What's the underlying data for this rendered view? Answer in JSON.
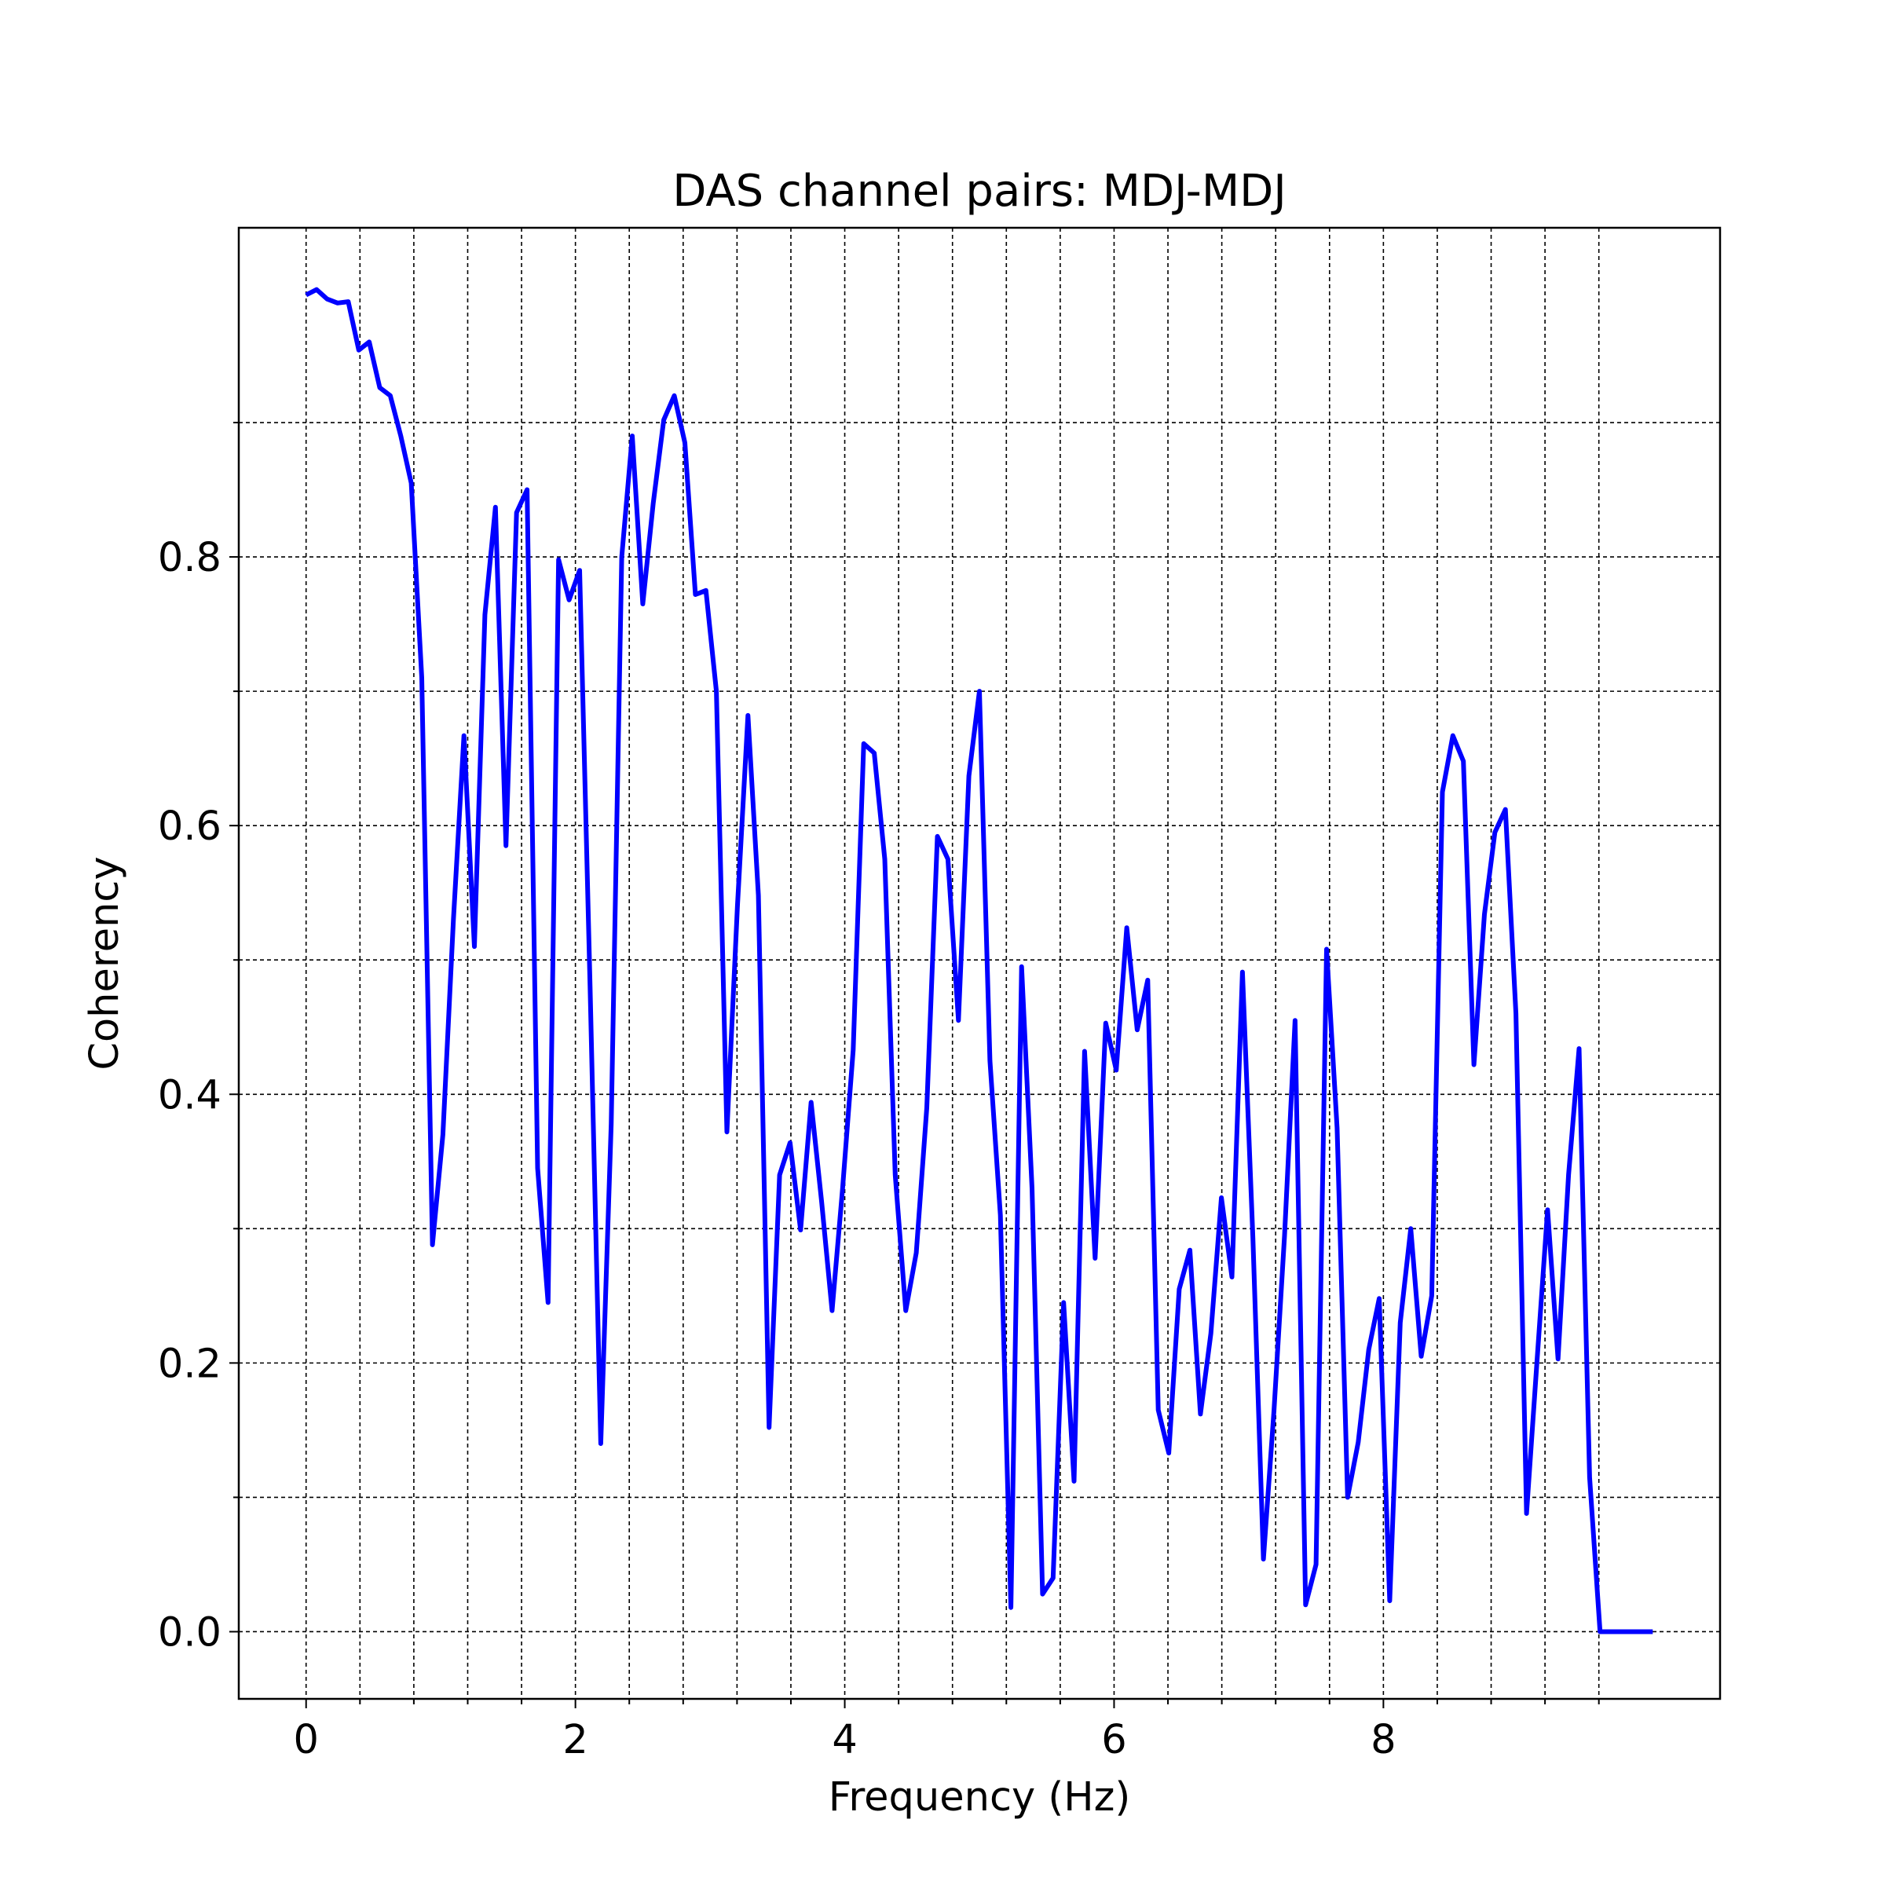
{
  "colors": {
    "line": "#0000ff",
    "background": "#ffffff",
    "axes": "#000000"
  },
  "chart_data": {
    "type": "line",
    "title": "DAS channel pairs: MDJ-MDJ",
    "xlabel": "Frequency (Hz)",
    "ylabel": "Coherency",
    "xlim": [
      -0.5,
      10.5
    ],
    "ylim": [
      -0.05,
      1.045
    ],
    "x_major_ticks": [
      0,
      2,
      4,
      6,
      8
    ],
    "x_tick_labels": [
      "0",
      "2",
      "4",
      "6",
      "8"
    ],
    "y_major_ticks": [
      0.0,
      0.2,
      0.4,
      0.6,
      0.8
    ],
    "y_tick_labels": [
      "0.0",
      "0.2",
      "0.4",
      "0.6",
      "0.8"
    ],
    "x_minor_ticks": [
      0.4,
      0.8,
      1.2,
      1.6,
      2.4,
      2.8,
      3.2,
      3.6,
      4.4,
      4.8,
      5.2,
      5.6,
      6.4,
      6.8,
      7.2,
      7.6,
      8.4,
      8.8,
      9.2,
      9.6
    ],
    "y_minor_ticks": [
      0.1,
      0.3,
      0.5,
      0.7,
      0.9
    ],
    "grid": true,
    "grid_style": "dashed, major and minor",
    "legend": "none",
    "series": [
      {
        "color": "#0000ff",
        "x": [
          0.0,
          0.078,
          0.156,
          0.234,
          0.313,
          0.391,
          0.469,
          0.547,
          0.625,
          0.703,
          0.781,
          0.859,
          0.938,
          1.016,
          1.094,
          1.172,
          1.25,
          1.328,
          1.406,
          1.484,
          1.563,
          1.641,
          1.719,
          1.797,
          1.875,
          1.953,
          2.031,
          2.109,
          2.188,
          2.266,
          2.344,
          2.422,
          2.5,
          2.578,
          2.656,
          2.734,
          2.813,
          2.891,
          2.969,
          3.047,
          3.125,
          3.203,
          3.281,
          3.359,
          3.438,
          3.516,
          3.594,
          3.672,
          3.75,
          3.828,
          3.906,
          3.984,
          4.063,
          4.141,
          4.219,
          4.297,
          4.375,
          4.453,
          4.531,
          4.609,
          4.688,
          4.766,
          4.844,
          4.922,
          5.0,
          5.078,
          5.156,
          5.234,
          5.313,
          5.391,
          5.469,
          5.547,
          5.625,
          5.703,
          5.781,
          5.859,
          5.938,
          6.016,
          6.094,
          6.172,
          6.25,
          6.328,
          6.406,
          6.484,
          6.563,
          6.641,
          6.719,
          6.797,
          6.875,
          6.953,
          7.031,
          7.109,
          7.188,
          7.266,
          7.344,
          7.422,
          7.5,
          7.578,
          7.656,
          7.734,
          7.813,
          7.891,
          7.969,
          8.047,
          8.125,
          8.203,
          8.281,
          8.359,
          8.438,
          8.516,
          8.594,
          8.672,
          8.75,
          8.828,
          8.906,
          8.984,
          9.063,
          9.141,
          9.219,
          9.297,
          9.375,
          9.453,
          9.531,
          9.609,
          9.688,
          9.766,
          9.844,
          9.922,
          10.0
        ],
        "values": [
          0.995,
          0.999,
          0.992,
          0.989,
          0.99,
          0.954,
          0.96,
          0.926,
          0.92,
          0.89,
          0.855,
          0.71,
          0.288,
          0.37,
          0.53,
          0.667,
          0.51,
          0.757,
          0.837,
          0.585,
          0.833,
          0.85,
          0.345,
          0.245,
          0.798,
          0.768,
          0.79,
          0.48,
          0.14,
          0.378,
          0.8,
          0.89,
          0.765,
          0.84,
          0.902,
          0.92,
          0.885,
          0.772,
          0.775,
          0.7,
          0.372,
          0.54,
          0.682,
          0.548,
          0.152,
          0.34,
          0.364,
          0.299,
          0.394,
          0.32,
          0.239,
          0.33,
          0.433,
          0.661,
          0.654,
          0.575,
          0.34,
          0.239,
          0.282,
          0.39,
          0.592,
          0.575,
          0.455,
          0.637,
          0.7,
          0.425,
          0.31,
          0.018,
          0.495,
          0.33,
          0.028,
          0.04,
          0.245,
          0.112,
          0.432,
          0.278,
          0.453,
          0.418,
          0.524,
          0.448,
          0.485,
          0.165,
          0.133,
          0.255,
          0.284,
          0.162,
          0.222,
          0.323,
          0.264,
          0.491,
          0.293,
          0.054,
          0.165,
          0.295,
          0.455,
          0.02,
          0.05,
          0.508,
          0.375,
          0.1,
          0.141,
          0.21,
          0.248,
          0.023,
          0.23,
          0.3,
          0.205,
          0.25,
          0.625,
          0.667,
          0.648,
          0.422,
          0.534,
          0.595,
          0.612,
          0.46,
          0.088,
          0.202,
          0.314,
          0.203,
          0.34,
          0.434,
          0.115,
          0.0,
          0.0,
          0.0,
          0.0,
          0.0,
          0.0
        ]
      }
    ]
  }
}
